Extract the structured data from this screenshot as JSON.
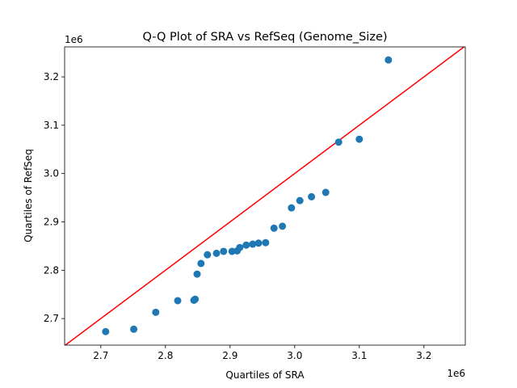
{
  "chart_data": {
    "type": "scatter",
    "title": "Q-Q Plot of SRA vs RefSeq (Genome_Size)",
    "xlabel": "Quartiles of SRA",
    "ylabel": "Quartiles of RefSeq",
    "x_offset_label": "1e6",
    "y_offset_label": "1e6",
    "xlim": [
      2.644,
      3.264
    ],
    "ylim": [
      2.645,
      3.262
    ],
    "xticks": [
      2.7,
      2.8,
      2.9,
      3.0,
      3.1,
      3.2
    ],
    "yticks": [
      2.7,
      2.8,
      2.9,
      3.0,
      3.1,
      3.2
    ],
    "xtick_labels": [
      "2.7",
      "2.8",
      "2.9",
      "3.0",
      "3.1",
      "3.2"
    ],
    "ytick_labels": [
      "2.7",
      "2.8",
      "2.9",
      "3.0",
      "3.1",
      "3.2"
    ],
    "grid": false,
    "point_color": "#1f77b4",
    "reference_line": {
      "type": "y=x",
      "color": "#ff0000"
    },
    "points": [
      [
        2.7075,
        2.673
      ],
      [
        2.751,
        2.678
      ],
      [
        2.785,
        2.713
      ],
      [
        2.819,
        2.737
      ],
      [
        2.844,
        2.738
      ],
      [
        2.846,
        2.74
      ],
      [
        2.849,
        2.792
      ],
      [
        2.855,
        2.814
      ],
      [
        2.865,
        2.832
      ],
      [
        2.879,
        2.835
      ],
      [
        2.89,
        2.839
      ],
      [
        2.903,
        2.839
      ],
      [
        2.911,
        2.84
      ],
      [
        2.915,
        2.847
      ],
      [
        2.925,
        2.852
      ],
      [
        2.935,
        2.854
      ],
      [
        2.944,
        2.856
      ],
      [
        2.955,
        2.857
      ],
      [
        2.968,
        2.887
      ],
      [
        2.981,
        2.891
      ],
      [
        2.995,
        2.929
      ],
      [
        3.008,
        2.944
      ],
      [
        3.026,
        2.952
      ],
      [
        3.048,
        2.961
      ],
      [
        3.068,
        3.065
      ],
      [
        3.1,
        3.071
      ],
      [
        3.145,
        3.235
      ]
    ]
  }
}
